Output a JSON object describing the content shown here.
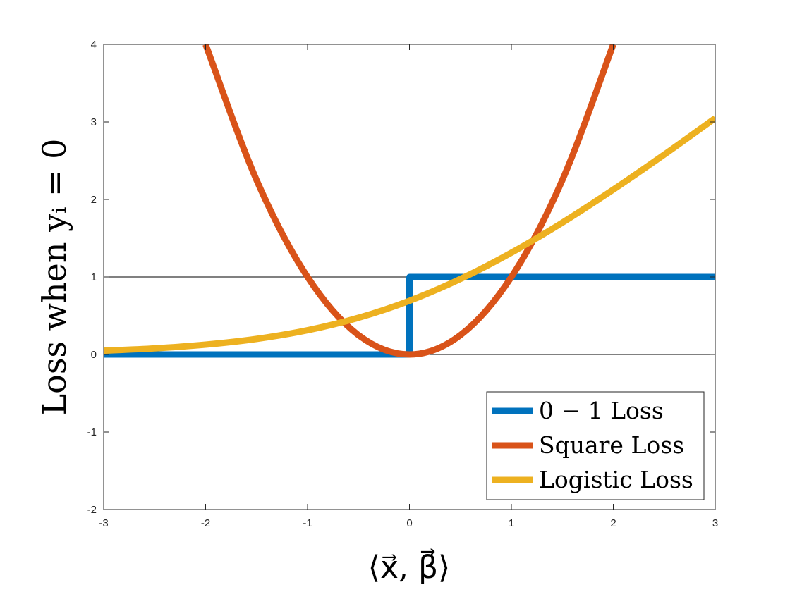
{
  "chart_data": {
    "type": "line",
    "xlabel": "⟨x⃗, β⃗⟩",
    "ylabel": "Loss when yᵢ = 0",
    "xlim": [
      -3,
      3
    ],
    "ylim": [
      -2,
      4
    ],
    "x_ticks": [
      -3,
      -2,
      -1,
      0,
      1,
      2,
      3
    ],
    "y_ticks": [
      -2,
      -1,
      0,
      1,
      2,
      3,
      4
    ],
    "x_tick_labels": [
      "-3",
      "-2",
      "-1",
      "0",
      "1",
      "2",
      "3"
    ],
    "y_tick_labels": [
      "-2",
      "-1",
      "0",
      "1",
      "2",
      "3",
      "4"
    ],
    "reference_lines_y": [
      0,
      1
    ],
    "legend_position": "bottom-right",
    "grid": false,
    "series": [
      {
        "name": "0 − 1 Loss",
        "color": "#0072BD",
        "x": [
          -3,
          0,
          0,
          3
        ],
        "y": [
          0,
          0,
          1,
          1
        ]
      },
      {
        "name": "Square Loss",
        "color": "#D95319",
        "x": [
          -2,
          -1.5,
          -1,
          -0.5,
          0,
          0.5,
          1,
          1.5,
          2
        ],
        "y": [
          4,
          2.25,
          1,
          0.25,
          0,
          0.25,
          1,
          2.25,
          4
        ]
      },
      {
        "name": "Logistic Loss",
        "color": "#EDB120",
        "x": [
          -3,
          -2.5,
          -2,
          -1.5,
          -1,
          -0.5,
          0,
          0.5,
          1,
          1.5,
          2,
          2.5,
          3
        ],
        "y": [
          0.049,
          0.079,
          0.127,
          0.201,
          0.313,
          0.474,
          0.693,
          0.974,
          1.313,
          1.701,
          2.127,
          2.579,
          3.049
        ]
      }
    ]
  }
}
